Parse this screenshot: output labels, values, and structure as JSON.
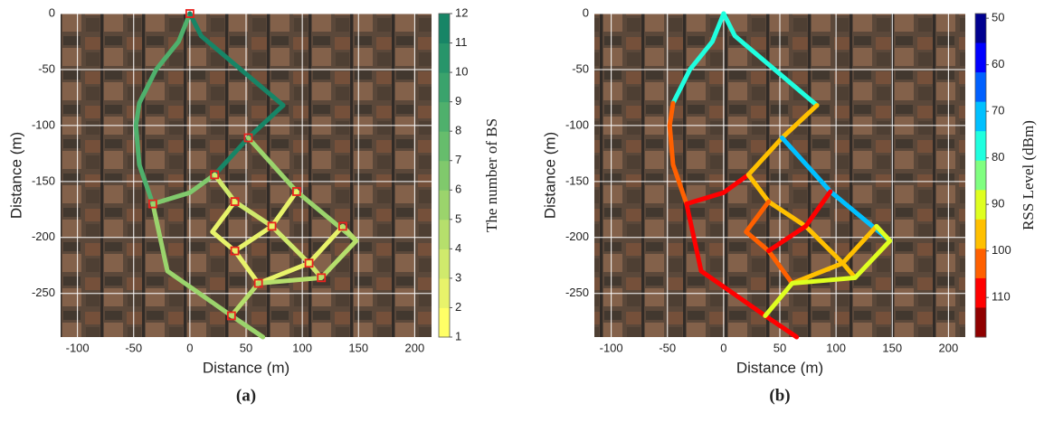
{
  "chart_data": [
    {
      "type": "route-map",
      "panel_label": "(a)",
      "xlabel": "Distance (m)",
      "ylabel": "Distance (m)",
      "xlim": [
        -115,
        215
      ],
      "ylim": [
        -289,
        0
      ],
      "xticks": [
        -100,
        -50,
        0,
        50,
        100,
        150,
        200
      ],
      "yticks": [
        0,
        -50,
        -100,
        -150,
        -200,
        -250
      ],
      "grid": true,
      "colorbar": {
        "label": "The number of BS",
        "clim": [
          1,
          12
        ],
        "ticks": [
          1,
          2,
          3,
          4,
          5,
          6,
          7,
          8,
          9,
          10,
          11,
          12
        ],
        "reversed": false,
        "colormap": [
          "#ffff66",
          "#e8f36a",
          "#d0ea6c",
          "#b6df6c",
          "#9bd46c",
          "#80c96c",
          "#66bd6c",
          "#4fb06c",
          "#3aa36c",
          "#27956a",
          "#178566"
        ]
      },
      "routes": [
        {
          "x": [
            0,
            -10,
            -30,
            -45,
            -48,
            -45,
            -33
          ],
          "y": [
            0,
            -25,
            -50,
            -80,
            -100,
            -135,
            -170
          ],
          "value": 8
        },
        {
          "x": [
            0,
            10,
            83
          ],
          "y": [
            0,
            -20,
            -82
          ],
          "value": 11
        },
        {
          "x": [
            83,
            52,
            22
          ],
          "y": [
            -82,
            -111,
            -144
          ],
          "value": 11
        },
        {
          "x": [
            -33,
            0,
            22
          ],
          "y": [
            -170,
            -160,
            -144
          ],
          "value": 6
        },
        {
          "x": [
            52,
            95,
            148
          ],
          "y": [
            -111,
            -159,
            -203
          ],
          "value": 5
        },
        {
          "x": [
            22,
            40,
            73,
            106,
            117
          ],
          "y": [
            -144,
            -168,
            -190,
            -223,
            -236
          ],
          "value": 3
        },
        {
          "x": [
            40,
            20,
            40,
            61
          ],
          "y": [
            -168,
            -195,
            -212,
            -241
          ],
          "value": 2
        },
        {
          "x": [
            95,
            73,
            40
          ],
          "y": [
            -159,
            -190,
            -212
          ],
          "value": 2
        },
        {
          "x": [
            136,
            106,
            61
          ],
          "y": [
            -190,
            -223,
            -241
          ],
          "value": 2
        },
        {
          "x": [
            -33,
            -20,
            37,
            65
          ],
          "y": [
            -170,
            -230,
            -270,
            -289
          ],
          "value": 5
        },
        {
          "x": [
            37,
            61,
            117,
            148,
            136
          ],
          "y": [
            -270,
            -241,
            -236,
            -203,
            -190
          ],
          "value": 4
        }
      ],
      "markers": {
        "color": "#e8231e",
        "x": [
          0,
          52,
          22,
          -33,
          40,
          95,
          73,
          136,
          40,
          106,
          61,
          117,
          37
        ],
        "y": [
          0,
          -111,
          -144,
          -170,
          -168,
          -159,
          -190,
          -190,
          -212,
          -223,
          -241,
          -236,
          -270
        ]
      }
    },
    {
      "type": "route-map",
      "panel_label": "(b)",
      "xlabel": "Distance (m)",
      "ylabel": "Distance (m)",
      "xlim": [
        -115,
        215
      ],
      "ylim": [
        -289,
        0
      ],
      "xticks": [
        -100,
        -50,
        0,
        50,
        100,
        150,
        200
      ],
      "yticks": [
        0,
        -50,
        -100,
        -150,
        -200,
        -250
      ],
      "grid": true,
      "colorbar": {
        "label": "RSS Level (dBm)",
        "clim": [
          49,
          118.5
        ],
        "ticks": [
          50,
          60,
          70,
          80,
          90,
          100,
          110
        ],
        "reversed": true,
        "colormap": [
          "#00008f",
          "#0000ff",
          "#0060ff",
          "#00c0ff",
          "#20ffdf",
          "#80ff80",
          "#dfff20",
          "#ffc000",
          "#ff6000",
          "#ff0000",
          "#8f0000"
        ]
      },
      "routes": [
        {
          "x": [
            0,
            -10,
            -30,
            -45
          ],
          "y": [
            0,
            -25,
            -50,
            -80
          ],
          "value": 75
        },
        {
          "x": [
            -45,
            -48,
            -45,
            -33
          ],
          "y": [
            -80,
            -100,
            -135,
            -170
          ],
          "value": 105
        },
        {
          "x": [
            0,
            10,
            83
          ],
          "y": [
            0,
            -20,
            -82
          ],
          "value": 78
        },
        {
          "x": [
            83,
            52,
            22
          ],
          "y": [
            -82,
            -111,
            -144
          ],
          "value": 98
        },
        {
          "x": [
            -33,
            0,
            22
          ],
          "y": [
            -170,
            -160,
            -144
          ],
          "value": 110
        },
        {
          "x": [
            52,
            95,
            148
          ],
          "y": [
            -111,
            -159,
            -203
          ],
          "value": 72
        },
        {
          "x": [
            22,
            40,
            73,
            106,
            117
          ],
          "y": [
            -144,
            -168,
            -190,
            -223,
            -236
          ],
          "value": 97
        },
        {
          "x": [
            40,
            20,
            40,
            61
          ],
          "y": [
            -168,
            -195,
            -212,
            -241
          ],
          "value": 100
        },
        {
          "x": [
            95,
            73,
            40
          ],
          "y": [
            -159,
            -190,
            -212
          ],
          "value": 108
        },
        {
          "x": [
            136,
            106,
            61
          ],
          "y": [
            -190,
            -223,
            -241
          ],
          "value": 95
        },
        {
          "x": [
            -33,
            -20,
            37,
            65
          ],
          "y": [
            -170,
            -230,
            -270,
            -289
          ],
          "value": 106
        },
        {
          "x": [
            37,
            61,
            117,
            148,
            136
          ],
          "y": [
            -270,
            -241,
            -236,
            -203,
            -190
          ],
          "value": 93
        }
      ]
    }
  ]
}
